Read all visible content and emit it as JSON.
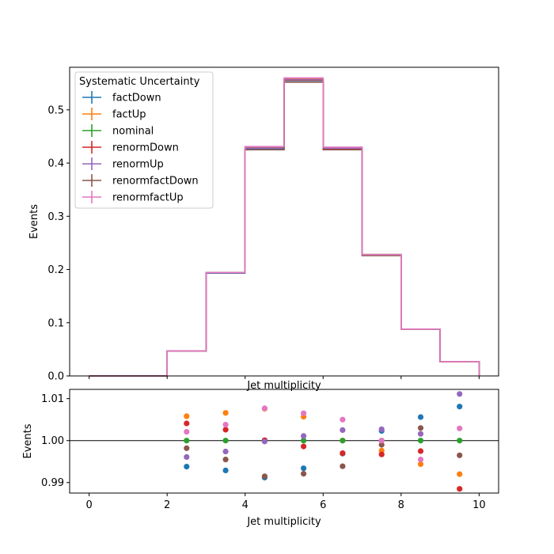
{
  "chart_data": [
    {
      "type": "line",
      "drawstyle": "step",
      "xlabel": "Jet multiplicity",
      "ylabel": "Events",
      "xlim": [
        -0.5,
        10.5
      ],
      "ylim": [
        0,
        0.58
      ],
      "xticks": [
        0,
        2,
        4,
        6,
        8,
        10
      ],
      "yticks": [
        0.0,
        0.1,
        0.2,
        0.3,
        0.4,
        0.5
      ],
      "ytick_labels": [
        "0.0",
        "0.1",
        "0.2",
        "0.3",
        "0.4",
        "0.5"
      ],
      "bin_edges": [
        0,
        1,
        2,
        3,
        4,
        5,
        6,
        7,
        8,
        9,
        10
      ],
      "legend": {
        "title": "Systematic Uncertainty",
        "placement": "upper-left",
        "marker": "errorbar"
      },
      "series": [
        {
          "name": "factDown",
          "color": "#1f77b4",
          "values": [
            0,
            0,
            0.047,
            0.193,
            0.427,
            0.555,
            0.427,
            0.227,
            0.088,
            0.027
          ]
        },
        {
          "name": "factUp",
          "color": "#ff7f0e",
          "values": [
            0,
            0,
            0.047,
            0.194,
            0.43,
            0.558,
            0.428,
            0.228,
            0.088,
            0.027
          ]
        },
        {
          "name": "nominal",
          "color": "#2ca02c",
          "values": [
            0,
            0,
            0.047,
            0.194,
            0.428,
            0.556,
            0.428,
            0.228,
            0.088,
            0.027
          ]
        },
        {
          "name": "renormDown",
          "color": "#d62728",
          "values": [
            0,
            0,
            0.047,
            0.194,
            0.428,
            0.556,
            0.427,
            0.227,
            0.088,
            0.027
          ]
        },
        {
          "name": "renormUp",
          "color": "#9467bd",
          "values": [
            0,
            0,
            0.047,
            0.194,
            0.428,
            0.557,
            0.428,
            0.228,
            0.088,
            0.027
          ]
        },
        {
          "name": "renormfactDown",
          "color": "#8c564b",
          "values": [
            0,
            0,
            0.047,
            0.194,
            0.425,
            0.552,
            0.425,
            0.226,
            0.088,
            0.027
          ]
        },
        {
          "name": "renormfactUp",
          "color": "#e377c2",
          "values": [
            0,
            0,
            0.047,
            0.194,
            0.431,
            0.56,
            0.43,
            0.228,
            0.088,
            0.027
          ]
        }
      ]
    },
    {
      "type": "scatter",
      "xlabel": "Jet multiplicity",
      "ylabel": "Events",
      "xlim": [
        -0.5,
        10.5
      ],
      "ylim": [
        0.9875,
        1.0122
      ],
      "xticks": [
        0,
        2,
        4,
        6,
        8,
        10
      ],
      "yticks": [
        0.99,
        1.0,
        1.01
      ],
      "ytick_labels": [
        "0.99",
        "1.00",
        "1.01"
      ],
      "reference_line": 1.0,
      "x": [
        2.5,
        3.5,
        4.5,
        5.5,
        6.5,
        7.5,
        8.5,
        9.5
      ],
      "series": [
        {
          "name": "factDown",
          "color": "#1f77b4",
          "values": [
            0.9938,
            0.9929,
            0.9912,
            0.9934,
            0.9969,
            1.0023,
            1.0056,
            1.0081
          ]
        },
        {
          "name": "factUp",
          "color": "#ff7f0e",
          "values": [
            1.0058,
            1.0066,
            1.0076,
            1.0057,
            1.0,
            0.9976,
            0.9944,
            0.992
          ]
        },
        {
          "name": "nominal",
          "color": "#2ca02c",
          "values": [
            1.0,
            1.0,
            1.0,
            1.0,
            1.0,
            1.0,
            1.0,
            1.0
          ]
        },
        {
          "name": "renormDown",
          "color": "#d62728",
          "values": [
            1.0041,
            1.0026,
            1.0001,
            0.9986,
            0.997,
            0.9967,
            0.9975,
            0.9885
          ]
        },
        {
          "name": "renormUp",
          "color": "#9467bd",
          "values": [
            0.9961,
            0.9974,
            0.9998,
            1.0011,
            1.0025,
            1.0027,
            1.0016,
            1.0111
          ]
        },
        {
          "name": "renormfactDown",
          "color": "#8c564b",
          "values": [
            0.9982,
            0.9955,
            0.9915,
            0.9921,
            0.9939,
            0.999,
            1.003,
            0.9965
          ]
        },
        {
          "name": "renormfactUp",
          "color": "#e377c2",
          "values": [
            1.0021,
            1.0038,
            1.0077,
            1.0065,
            1.005,
            1.0,
            0.9955,
            1.0029
          ]
        }
      ]
    }
  ]
}
